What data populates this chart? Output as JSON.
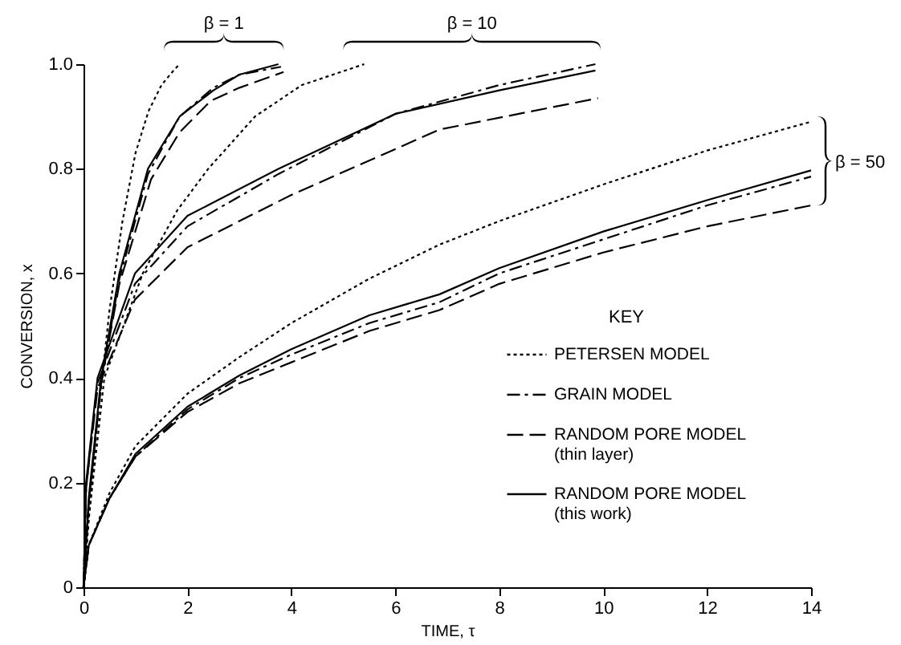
{
  "chart_data": {
    "type": "line",
    "xlabel": "TIME, τ",
    "ylabel": "CONVERSION, x",
    "legend_title": "KEY",
    "legend": "bottom right",
    "xlim": [
      0,
      14
    ],
    "xticks": [
      0,
      2,
      4,
      6,
      8,
      10,
      12,
      14
    ],
    "ylim": [
      0,
      1
    ],
    "yticks": [
      0,
      0.2,
      0.4,
      0.6,
      0.8,
      {
        "value": 1,
        "label": "1.0"
      }
    ],
    "annotations": [
      "β = 1",
      "β = 10",
      "β = 50"
    ],
    "series": [
      {
        "name": "PETERSEN MODEL",
        "color": "#000000",
        "line_style": "dotted",
        "x": [
          0,
          0.1,
          0.25,
          0.5,
          0.75,
          1,
          1.25,
          1.5,
          1.75,
          1.85
        ],
        "values": [
          0,
          0.13,
          0.3,
          0.53,
          0.7,
          0.83,
          0.91,
          0.96,
          0.99,
          1.0
        ]
      },
      {
        "name": "GRAIN MODEL",
        "color": "#000000",
        "line_style": "dashdot",
        "x": [
          0,
          0.1,
          0.34,
          0.69,
          1.24,
          1.85,
          2.5,
          3,
          3.8
        ],
        "values": [
          0,
          0.16,
          0.39,
          0.59,
          0.79,
          0.9,
          0.955,
          0.98,
          0.995
        ]
      },
      {
        "name": "RANDOM PORE MODEL\n(thin layer)",
        "color": "#000000",
        "line_style": "dashed",
        "x": [
          0,
          0.1,
          0.34,
          0.69,
          1.3,
          1.85,
          2.45,
          3,
          3.85
        ],
        "values": [
          0,
          0.16,
          0.39,
          0.58,
          0.78,
          0.87,
          0.93,
          0.955,
          0.985
        ]
      },
      {
        "name": "RANDOM PORE MODEL\n(this work)",
        "color": "#000000",
        "line_style": "solid",
        "x": [
          0,
          0.1,
          0.34,
          0.69,
          1.24,
          1.85,
          2.5,
          3,
          3.75
        ],
        "values": [
          0,
          0.17,
          0.4,
          0.6,
          0.8,
          0.9,
          0.95,
          0.98,
          1.0
        ]
      },
      {
        "color": "#000000",
        "line_style": "dotted",
        "x": [
          0,
          0.1,
          0.4,
          1.14,
          1.8,
          2.4,
          3.3,
          4.2,
          5.4
        ],
        "values": [
          0,
          0.13,
          0.4,
          0.6,
          0.72,
          0.8,
          0.9,
          0.96,
          1.0
        ]
      },
      {
        "color": "#000000",
        "line_style": "dashdot",
        "x": [
          0,
          0.05,
          0.27,
          0.99,
          2,
          3.75,
          6,
          8,
          9.85
        ],
        "values": [
          0,
          0.19,
          0.39,
          0.58,
          0.69,
          0.79,
          0.905,
          0.96,
          1.0
        ]
      },
      {
        "color": "#000000",
        "line_style": "dashed",
        "x": [
          0,
          0.05,
          0.27,
          0.99,
          2,
          4,
          6.85,
          9.9
        ],
        "values": [
          0,
          0.19,
          0.38,
          0.55,
          0.65,
          0.75,
          0.875,
          0.935
        ]
      },
      {
        "color": "#000000",
        "line_style": "solid",
        "x": [
          0,
          0.05,
          0.27,
          0.99,
          2,
          3.75,
          6,
          8,
          9.85
        ],
        "values": [
          0,
          0.2,
          0.4,
          0.6,
          0.71,
          0.8,
          0.905,
          0.95,
          0.988
        ]
      },
      {
        "color": "#000000",
        "line_style": "dotted",
        "x": [
          0,
          0.1,
          0.5,
          1,
          2,
          3,
          4,
          5.5,
          6.85,
          8,
          10,
          12,
          14
        ],
        "values": [
          0,
          0.08,
          0.18,
          0.27,
          0.37,
          0.44,
          0.505,
          0.59,
          0.655,
          0.7,
          0.77,
          0.835,
          0.89
        ]
      },
      {
        "color": "#000000",
        "line_style": "dashdot",
        "x": [
          0,
          0.1,
          0.5,
          1,
          2,
          3,
          4,
          5.5,
          6.85,
          8,
          10,
          12,
          14
        ],
        "values": [
          0,
          0.08,
          0.17,
          0.25,
          0.34,
          0.4,
          0.445,
          0.505,
          0.545,
          0.6,
          0.665,
          0.73,
          0.785
        ]
      },
      {
        "color": "#000000",
        "line_style": "dashed",
        "x": [
          0,
          0.1,
          0.5,
          1,
          2,
          3,
          4,
          5.5,
          6.85,
          8,
          10,
          12,
          14
        ],
        "values": [
          0,
          0.08,
          0.17,
          0.25,
          0.335,
          0.39,
          0.43,
          0.49,
          0.53,
          0.58,
          0.64,
          0.69,
          0.73
        ]
      },
      {
        "color": "#000000",
        "line_style": "solid",
        "x": [
          0,
          0.1,
          0.5,
          1,
          2,
          3,
          4,
          5.5,
          6.85,
          8,
          10,
          12,
          14
        ],
        "values": [
          0,
          0.08,
          0.17,
          0.255,
          0.345,
          0.405,
          0.455,
          0.52,
          0.56,
          0.61,
          0.68,
          0.74,
          0.797
        ]
      }
    ]
  }
}
